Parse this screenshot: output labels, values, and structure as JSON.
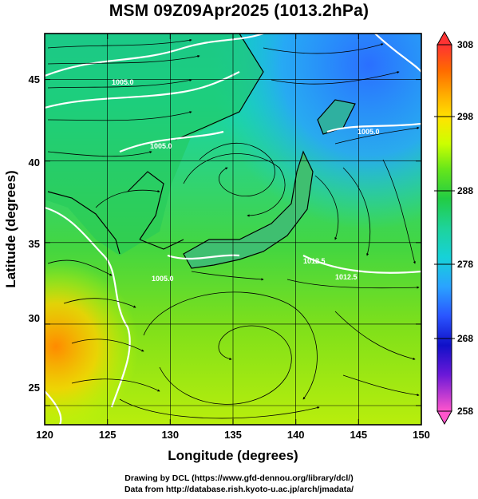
{
  "title": "MSM 09Z09Apr2025 (1013.2hPa)",
  "axes": {
    "xlabel": "Longitude (degrees)",
    "ylabel": "Latitude  (degrees)",
    "x_ticks": [
      "120",
      "125",
      "130",
      "135",
      "140",
      "145",
      "150"
    ],
    "y_ticks": [
      "25",
      "30",
      "35",
      "40",
      "45"
    ],
    "xlim": [
      120,
      150
    ],
    "ylim": [
      22.5,
      48
    ]
  },
  "colorbar": {
    "min": 258,
    "max": 308,
    "tick_labels": [
      "308",
      "298",
      "288",
      "278",
      "268",
      "258"
    ],
    "colors": [
      "#ff3333",
      "#ff6a00",
      "#ffb000",
      "#ffe400",
      "#ccff00",
      "#66e61a",
      "#22cc44",
      "#1ed39a",
      "#16d2d8",
      "#2aa3ff",
      "#2a55ff",
      "#1010c8",
      "#6a18d8",
      "#d020d8",
      "#ff55cc"
    ]
  },
  "contour_labels": [
    "1005.0",
    "1005.0",
    "1005.0",
    "1012.5",
    "1012.5",
    "1005.0"
  ],
  "credits": {
    "line1": "Drawing by DCL (https://www.gfd-dennou.org/library/dcl/)",
    "line2": "Data from http://database.rish.kyoto-u.ac.jp/arch/jmadata/"
  }
}
